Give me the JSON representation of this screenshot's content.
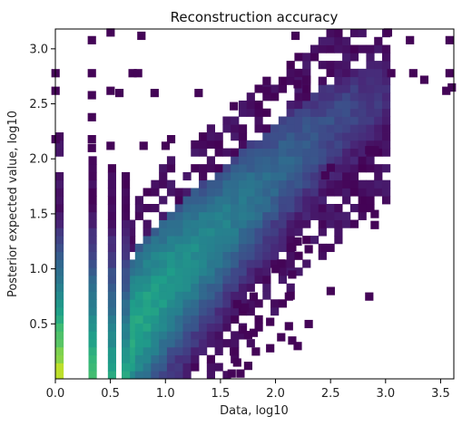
{
  "chart_data": {
    "type": "heatmap",
    "title": "Reconstruction accuracy",
    "xlabel": "Data, log10",
    "ylabel": "Posterior expected value, log10",
    "xlim": [
      0,
      3.62
    ],
    "ylim": [
      0,
      3.18
    ],
    "xticks": [
      0.0,
      0.5,
      1.0,
      1.5,
      2.0,
      2.5,
      3.0,
      3.5
    ],
    "xtick_labels": [
      "0.0",
      "0.5",
      "1.0",
      "1.5",
      "2.0",
      "2.5",
      "3.0",
      "3.5"
    ],
    "yticks": [
      0.5,
      1.0,
      1.5,
      2.0,
      2.5,
      3.0
    ],
    "ytick_labels": [
      "0.5",
      "1.0",
      "1.5",
      "2.0",
      "2.5",
      "3.0"
    ],
    "colormap": "viridis",
    "color_scale": "log",
    "grid": false,
    "nx": 50,
    "ny": 44,
    "discrete_x_columns": [
      0.0,
      0.301,
      0.477,
      0.602
    ],
    "ridge": [
      {
        "x": 0.6,
        "y": 0.3
      },
      {
        "x": 1.0,
        "y": 0.85
      },
      {
        "x": 1.5,
        "y": 1.35
      },
      {
        "x": 2.0,
        "y": 1.85
      },
      {
        "x": 2.5,
        "y": 2.3
      },
      {
        "x": 3.0,
        "y": 2.6
      }
    ],
    "sparse_cells": [
      [
        0.33,
        3.08
      ],
      [
        0.5,
        3.15
      ],
      [
        0.78,
        3.12
      ],
      [
        2.18,
        3.12
      ],
      [
        3.02,
        3.15
      ],
      [
        3.22,
        3.08
      ],
      [
        3.58,
        3.08
      ],
      [
        0.0,
        2.78
      ],
      [
        0.33,
        2.78
      ],
      [
        0.7,
        2.78
      ],
      [
        0.75,
        2.78
      ],
      [
        3.05,
        2.78
      ],
      [
        3.25,
        2.78
      ],
      [
        3.58,
        2.78
      ],
      [
        0.0,
        2.62
      ],
      [
        0.33,
        2.58
      ],
      [
        0.5,
        2.62
      ],
      [
        0.58,
        2.6
      ],
      [
        0.9,
        2.6
      ],
      [
        1.3,
        2.6
      ],
      [
        1.92,
        2.62
      ],
      [
        2.2,
        2.68
      ],
      [
        2.28,
        2.72
      ],
      [
        3.35,
        2.72
      ],
      [
        3.55,
        2.62
      ],
      [
        3.6,
        2.65
      ],
      [
        0.33,
        2.38
      ],
      [
        1.62,
        2.48
      ],
      [
        0.0,
        2.18
      ],
      [
        0.33,
        2.18
      ],
      [
        0.33,
        2.1
      ],
      [
        0.5,
        2.12
      ],
      [
        0.8,
        2.12
      ],
      [
        1.0,
        2.12
      ],
      [
        1.05,
        2.18
      ],
      [
        2.85,
        2.08
      ],
      [
        2.9,
        2.08
      ],
      [
        2.5,
        1.92
      ],
      [
        2.45,
        1.85
      ],
      [
        2.9,
        1.5
      ],
      [
        2.9,
        1.4
      ],
      [
        2.2,
        1.25
      ],
      [
        2.3,
        1.18
      ],
      [
        2.15,
        1.2
      ],
      [
        2.05,
        1.05
      ],
      [
        2.0,
        1.0
      ],
      [
        2.15,
        0.95
      ],
      [
        1.8,
        0.75
      ],
      [
        2.12,
        0.75
      ],
      [
        1.65,
        0.68
      ],
      [
        1.72,
        0.65
      ],
      [
        2.5,
        0.8
      ],
      [
        2.85,
        0.75
      ],
      [
        1.95,
        0.52
      ],
      [
        2.12,
        0.48
      ],
      [
        2.3,
        0.5
      ],
      [
        1.7,
        0.45
      ],
      [
        1.75,
        0.4
      ],
      [
        1.8,
        0.42
      ],
      [
        2.15,
        0.35
      ],
      [
        2.05,
        0.38
      ],
      [
        1.95,
        0.28
      ],
      [
        2.2,
        0.3
      ],
      [
        1.62,
        0.25
      ],
      [
        1.65,
        0.15
      ],
      [
        1.75,
        0.12
      ],
      [
        1.68,
        0.05
      ],
      [
        1.6,
        0.05
      ],
      [
        1.82,
        0.25
      ]
    ]
  }
}
